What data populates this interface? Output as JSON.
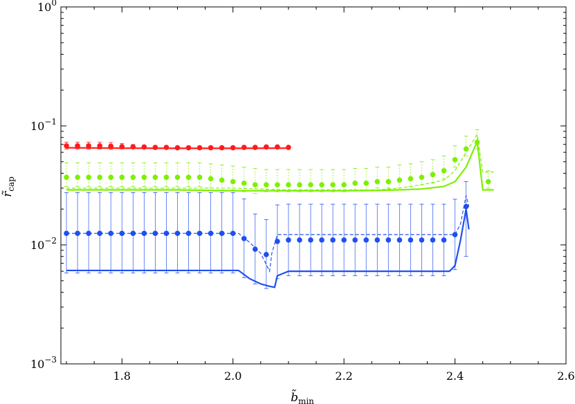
{
  "chart_data": {
    "type": "scatter",
    "title": "",
    "xlabel": "b̃",
    "xlabel_sub": "min",
    "ylabel": "r̃",
    "ylabel_sub": "cap",
    "xlim": [
      1.69,
      2.6
    ],
    "ylim": [
      0.001,
      1
    ],
    "yscale": "log",
    "grid": false,
    "x_ticks": [
      1.8,
      2.0,
      2.2,
      2.4,
      2.6
    ],
    "x_tick_labels": [
      "1.8",
      "2.0",
      "2.2",
      "2.4",
      "2.6"
    ],
    "y_ticks": [
      0.001,
      0.01,
      0.1,
      1
    ],
    "y_tick_labels": [
      {
        "base": "10",
        "exp": "−3"
      },
      {
        "base": "10",
        "exp": "−2"
      },
      {
        "base": "10",
        "exp": "−1"
      },
      {
        "base": "10",
        "exp": "0"
      }
    ],
    "series": [
      {
        "color": "#ff1a1a",
        "points": {
          "x": [
            1.7,
            1.72,
            1.74,
            1.76,
            1.78,
            1.8,
            1.82,
            1.84,
            1.86,
            1.88,
            1.9,
            1.92,
            1.94,
            1.96,
            1.98,
            2.0,
            2.02,
            2.04,
            2.06,
            2.08,
            2.1
          ],
          "y": [
            0.068,
            0.068,
            0.068,
            0.068,
            0.0675,
            0.067,
            0.0668,
            0.0665,
            0.066,
            0.066,
            0.0655,
            0.0655,
            0.0655,
            0.0655,
            0.0655,
            0.0655,
            0.066,
            0.066,
            0.0665,
            0.0665,
            0.066
          ],
          "err_up": [
            0.005,
            0.005,
            0.005,
            0.005,
            0.005,
            0.004,
            0.003,
            0.002,
            0.002,
            0.002,
            0.002,
            0.002,
            0.002,
            0.002,
            0.002,
            0.002,
            0.002,
            0.002,
            0.002,
            0.002,
            0.002
          ],
          "err_down": [
            0.004,
            0.004,
            0.004,
            0.004,
            0.004,
            0.003,
            0.002,
            0.002,
            0.002,
            0.002,
            0.002,
            0.002,
            0.002,
            0.002,
            0.002,
            0.002,
            0.002,
            0.002,
            0.002,
            0.002,
            0.002
          ]
        },
        "solid": {
          "x": [
            1.7,
            1.8,
            1.9,
            2.0,
            2.1
          ],
          "y": [
            0.0655,
            0.065,
            0.0648,
            0.0648,
            0.065
          ]
        }
      },
      {
        "color": "#7df000",
        "points": {
          "x": [
            1.7,
            1.72,
            1.74,
            1.76,
            1.78,
            1.8,
            1.82,
            1.84,
            1.86,
            1.88,
            1.9,
            1.92,
            1.94,
            1.96,
            1.98,
            2.0,
            2.02,
            2.04,
            2.06,
            2.08,
            2.1,
            2.12,
            2.14,
            2.16,
            2.18,
            2.2,
            2.22,
            2.24,
            2.26,
            2.28,
            2.3,
            2.32,
            2.34,
            2.36,
            2.38,
            2.4,
            2.42,
            2.44,
            2.46
          ],
          "y": [
            0.037,
            0.037,
            0.037,
            0.037,
            0.037,
            0.037,
            0.037,
            0.037,
            0.037,
            0.037,
            0.037,
            0.037,
            0.037,
            0.036,
            0.035,
            0.034,
            0.033,
            0.032,
            0.032,
            0.032,
            0.032,
            0.032,
            0.032,
            0.032,
            0.032,
            0.032,
            0.033,
            0.033,
            0.034,
            0.034,
            0.035,
            0.036,
            0.037,
            0.039,
            0.042,
            0.052,
            0.064,
            0.073,
            0.034
          ],
          "err_up": [
            0.012,
            0.012,
            0.012,
            0.012,
            0.012,
            0.012,
            0.012,
            0.012,
            0.012,
            0.012,
            0.012,
            0.012,
            0.012,
            0.012,
            0.012,
            0.012,
            0.012,
            0.012,
            0.011,
            0.011,
            0.011,
            0.011,
            0.011,
            0.011,
            0.011,
            0.011,
            0.011,
            0.011,
            0.011,
            0.011,
            0.012,
            0.012,
            0.013,
            0.013,
            0.014,
            0.016,
            0.018,
            0.02,
            0.008
          ],
          "err_down": [
            0.006,
            0.006,
            0.006,
            0.006,
            0.006,
            0.006,
            0.006,
            0.006,
            0.006,
            0.006,
            0.006,
            0.006,
            0.006,
            0.006,
            0.006,
            0.005,
            0.005,
            0.005,
            0.004,
            0.004,
            0.004,
            0.004,
            0.004,
            0.004,
            0.004,
            0.004,
            0.004,
            0.004,
            0.004,
            0.004,
            0.005,
            0.005,
            0.005,
            0.006,
            0.006,
            0.007,
            0.008,
            0.009,
            0.004
          ]
        },
        "dashed": {
          "x": [
            1.7,
            2.0,
            2.1,
            2.2,
            2.26,
            2.3,
            2.34,
            2.38,
            2.4,
            2.42,
            2.44,
            2.45,
            2.47
          ],
          "y": [
            0.03,
            0.03,
            0.029,
            0.029,
            0.029,
            0.03,
            0.032,
            0.035,
            0.042,
            0.06,
            0.085,
            0.041,
            0.041
          ]
        },
        "solid": {
          "x": [
            1.7,
            1.9,
            2.0,
            2.1,
            2.2,
            2.26,
            2.3,
            2.34,
            2.38,
            2.4,
            2.42,
            2.44,
            2.45,
            2.47
          ],
          "y": [
            0.029,
            0.029,
            0.0285,
            0.0285,
            0.0285,
            0.0287,
            0.029,
            0.0295,
            0.031,
            0.034,
            0.045,
            0.074,
            0.029,
            0.029
          ]
        }
      },
      {
        "color": "#1f4ff0",
        "points": {
          "x": [
            1.7,
            1.72,
            1.74,
            1.76,
            1.78,
            1.8,
            1.82,
            1.84,
            1.86,
            1.88,
            1.9,
            1.92,
            1.94,
            1.96,
            1.98,
            2.0,
            2.02,
            2.04,
            2.06,
            2.08,
            2.1,
            2.12,
            2.14,
            2.16,
            2.18,
            2.2,
            2.22,
            2.24,
            2.26,
            2.28,
            2.3,
            2.32,
            2.34,
            2.36,
            2.38,
            2.4,
            2.42
          ],
          "y": [
            0.0125,
            0.0125,
            0.0125,
            0.0125,
            0.0125,
            0.0125,
            0.0125,
            0.0125,
            0.0125,
            0.0125,
            0.0125,
            0.0125,
            0.0125,
            0.0125,
            0.0125,
            0.0125,
            0.0113,
            0.0092,
            0.0083,
            0.0107,
            0.011,
            0.011,
            0.011,
            0.011,
            0.011,
            0.011,
            0.011,
            0.011,
            0.011,
            0.011,
            0.011,
            0.011,
            0.011,
            0.011,
            0.011,
            0.0122,
            0.021
          ],
          "err_up": [
            0.015,
            0.015,
            0.015,
            0.015,
            0.015,
            0.015,
            0.015,
            0.015,
            0.015,
            0.015,
            0.015,
            0.015,
            0.015,
            0.015,
            0.015,
            0.015,
            0.013,
            0.009,
            0.008,
            0.011,
            0.011,
            0.011,
            0.011,
            0.011,
            0.011,
            0.011,
            0.011,
            0.011,
            0.011,
            0.011,
            0.011,
            0.011,
            0.011,
            0.011,
            0.011,
            0.012,
            0.013
          ],
          "err_down": [
            0.0067,
            0.0067,
            0.0067,
            0.0067,
            0.0067,
            0.0067,
            0.0067,
            0.0067,
            0.0067,
            0.0067,
            0.0067,
            0.0067,
            0.0067,
            0.0067,
            0.0067,
            0.0067,
            0.006,
            0.0045,
            0.004,
            0.0055,
            0.0055,
            0.0055,
            0.0055,
            0.0055,
            0.0055,
            0.0055,
            0.0055,
            0.0055,
            0.0055,
            0.0055,
            0.0055,
            0.0055,
            0.0055,
            0.0055,
            0.0055,
            0.006,
            0.013
          ]
        },
        "dashed": {
          "x": [
            1.7,
            2.0,
            2.01,
            2.03,
            2.05,
            2.066,
            2.07,
            2.08,
            2.4,
            2.41,
            2.42,
            2.425
          ],
          "y": [
            0.0125,
            0.0125,
            0.0125,
            0.0105,
            0.0085,
            0.006,
            0.0085,
            0.0122,
            0.0122,
            0.015,
            0.026,
            0.021
          ]
        },
        "solid": {
          "x": [
            1.7,
            2.0,
            2.01,
            2.03,
            2.05,
            2.065,
            2.075,
            2.08,
            2.1,
            2.2,
            2.3,
            2.39,
            2.4,
            2.41,
            2.42,
            2.425
          ],
          "y": [
            0.0061,
            0.0061,
            0.0061,
            0.0052,
            0.0047,
            0.0045,
            0.0044,
            0.0055,
            0.006,
            0.006,
            0.006,
            0.006,
            0.0067,
            0.011,
            0.02,
            0.0135
          ]
        }
      }
    ]
  }
}
